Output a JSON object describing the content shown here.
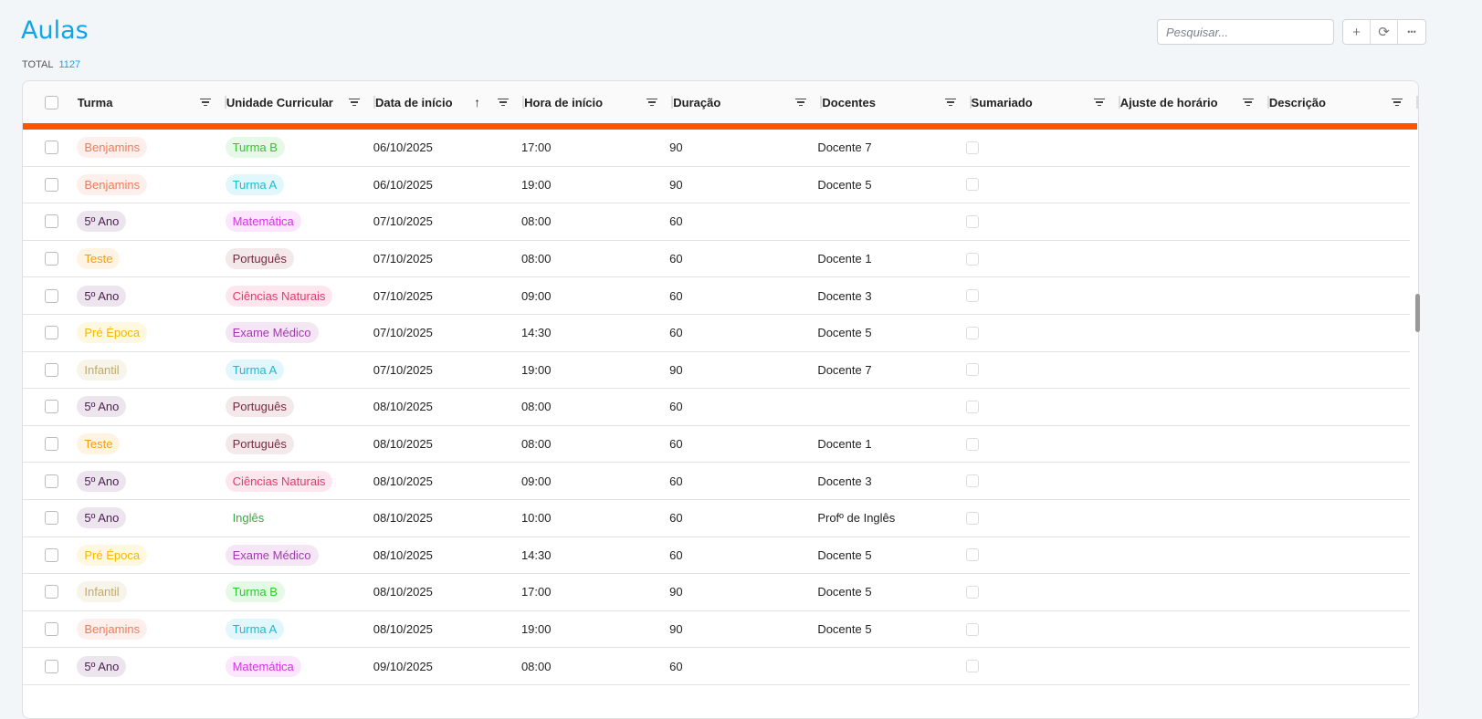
{
  "page": {
    "title": "Aulas",
    "total_label": "TOTAL",
    "total_value": "1127"
  },
  "toolbar": {
    "search_placeholder": "Pesquisar...",
    "add_icon": "+",
    "refresh_icon": "⟳",
    "more_icon": "•••"
  },
  "colors": {
    "accent": "#0ea5e9",
    "progress_bar": "#ff5500"
  },
  "table": {
    "columns": [
      "Turma",
      "Unidade Curricular",
      "Data de início",
      "Hora de início",
      "Duração",
      "Docentes",
      "Sumariado",
      "Ajuste de horário",
      "Descrição"
    ],
    "sort": {
      "column": "Data de início",
      "direction": "asc",
      "icon": "↑"
    },
    "rows": [
      {
        "turma": "Benjamins",
        "uc": "Turma B",
        "data": "06/10/2025",
        "hora": "17:00",
        "duracao": "90",
        "docentes": "Docente 7"
      },
      {
        "turma": "Benjamins",
        "uc": "Turma A",
        "data": "06/10/2025",
        "hora": "19:00",
        "duracao": "90",
        "docentes": "Docente 5"
      },
      {
        "turma": "5º Ano",
        "uc": "Matemática",
        "data": "07/10/2025",
        "hora": "08:00",
        "duracao": "60",
        "docentes": ""
      },
      {
        "turma": "Teste",
        "uc": "Português",
        "data": "07/10/2025",
        "hora": "08:00",
        "duracao": "60",
        "docentes": "Docente 1"
      },
      {
        "turma": "5º Ano",
        "uc": "Ciências Naturais",
        "data": "07/10/2025",
        "hora": "09:00",
        "duracao": "60",
        "docentes": "Docente 3"
      },
      {
        "turma": "Pré Época",
        "uc": "Exame Médico",
        "data": "07/10/2025",
        "hora": "14:30",
        "duracao": "60",
        "docentes": "Docente 5"
      },
      {
        "turma": "Infantil",
        "uc": "Turma A",
        "data": "07/10/2025",
        "hora": "19:00",
        "duracao": "90",
        "docentes": "Docente 7"
      },
      {
        "turma": "5º Ano",
        "uc": "Português",
        "data": "08/10/2025",
        "hora": "08:00",
        "duracao": "60",
        "docentes": ""
      },
      {
        "turma": "Teste",
        "uc": "Português",
        "data": "08/10/2025",
        "hora": "08:00",
        "duracao": "60",
        "docentes": "Docente 1"
      },
      {
        "turma": "5º Ano",
        "uc": "Ciências Naturais",
        "data": "08/10/2025",
        "hora": "09:00",
        "duracao": "60",
        "docentes": "Docente 3"
      },
      {
        "turma": "5º Ano",
        "uc": "Inglês",
        "data": "08/10/2025",
        "hora": "10:00",
        "duracao": "60",
        "docentes": "Profº de Inglês"
      },
      {
        "turma": "Pré Época",
        "uc": "Exame Médico",
        "data": "08/10/2025",
        "hora": "14:30",
        "duracao": "60",
        "docentes": "Docente 5"
      },
      {
        "turma": "Infantil",
        "uc": "Turma B",
        "data": "08/10/2025",
        "hora": "17:00",
        "duracao": "90",
        "docentes": "Docente 5"
      },
      {
        "turma": "Benjamins",
        "uc": "Turma A",
        "data": "08/10/2025",
        "hora": "19:00",
        "duracao": "90",
        "docentes": "Docente 5"
      },
      {
        "turma": "5º Ano",
        "uc": "Matemática",
        "data": "09/10/2025",
        "hora": "08:00",
        "duracao": "60",
        "docentes": ""
      }
    ]
  },
  "tag_colors": {
    "Benjamins": [
      "#fdf0ec",
      "#ee7b5a"
    ],
    "5º Ano": [
      "#ede5ee",
      "#4a1f4f"
    ],
    "Teste": [
      "#fff4e3",
      "#f59e0b"
    ],
    "Pré Época": [
      "#fff8e0",
      "#f5b800"
    ],
    "Infantil": [
      "#f7f4ea",
      "#c2a86a"
    ],
    "Turma B": [
      "#e6f9e6",
      "#2fc52f"
    ],
    "Turma A": [
      "#e1f7fb",
      "#1cbad0"
    ],
    "Matemática": [
      "#fce6fd",
      "#d92fe6"
    ],
    "Português": [
      "#f3e8ea",
      "#7a2b40"
    ],
    "Ciências Naturais": [
      "#fde6ee",
      "#e8386c"
    ],
    "Exame Médico": [
      "#f4e6f4",
      "#a23ab0"
    ],
    "Inglês": [
      "#ffffff",
      "#3ca84a"
    ]
  }
}
